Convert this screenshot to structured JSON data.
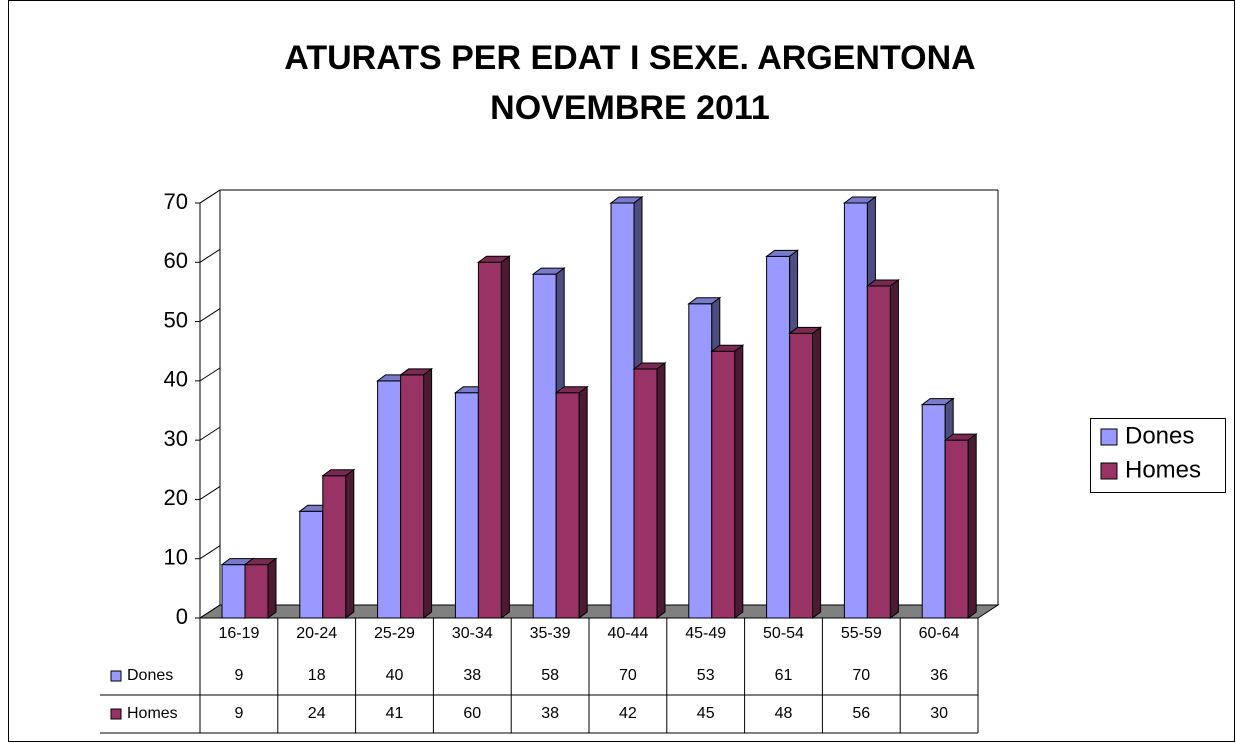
{
  "chart_data": {
    "type": "bar3d",
    "title": [
      "ATURATS PER EDAT I SEXE. ARGENTONA",
      "NOVEMBRE 2011"
    ],
    "categories": [
      "16-19",
      "20-24",
      "25-29",
      "30-34",
      "35-39",
      "40-44",
      "45-49",
      "50-54",
      "55-59",
      "60-64"
    ],
    "series": [
      {
        "name": "Dones",
        "color": "#9999ff",
        "values": [
          9,
          18,
          40,
          38,
          58,
          70,
          53,
          61,
          70,
          36
        ]
      },
      {
        "name": "Homes",
        "color": "#993366",
        "values": [
          9,
          24,
          41,
          60,
          38,
          42,
          45,
          48,
          56,
          30
        ]
      }
    ],
    "ylim": [
      0,
      70
    ],
    "yticks": [
      0,
      10,
      20,
      30,
      40,
      50,
      60,
      70
    ],
    "legend": "right",
    "data_table": true
  }
}
